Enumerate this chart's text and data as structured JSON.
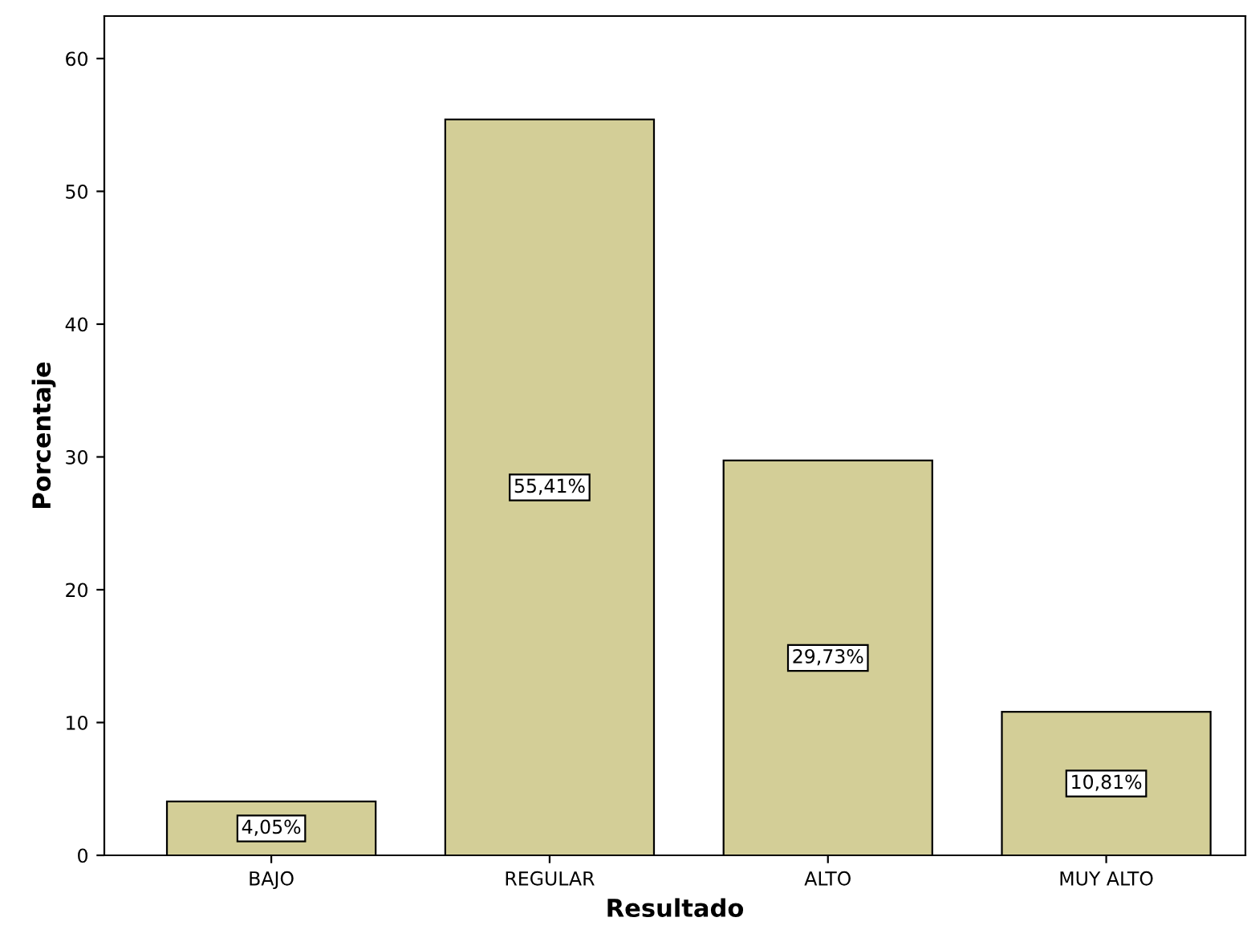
{
  "chart_data": {
    "type": "bar",
    "xlabel": "Resultado",
    "ylabel": "Porcentaje",
    "categories": [
      "BAJO",
      "REGULAR",
      "ALTO",
      "MUY ALTO"
    ],
    "values": [
      4.05,
      55.41,
      29.73,
      10.81
    ],
    "value_labels": [
      "4,05%",
      "55,41%",
      "29,73%",
      "10,81%"
    ],
    "color": "#d3ce97",
    "ylim": [
      0,
      63.2
    ],
    "yticks": [
      0,
      10,
      20,
      30,
      40,
      50,
      60
    ],
    "grid": false,
    "legend": false
  }
}
